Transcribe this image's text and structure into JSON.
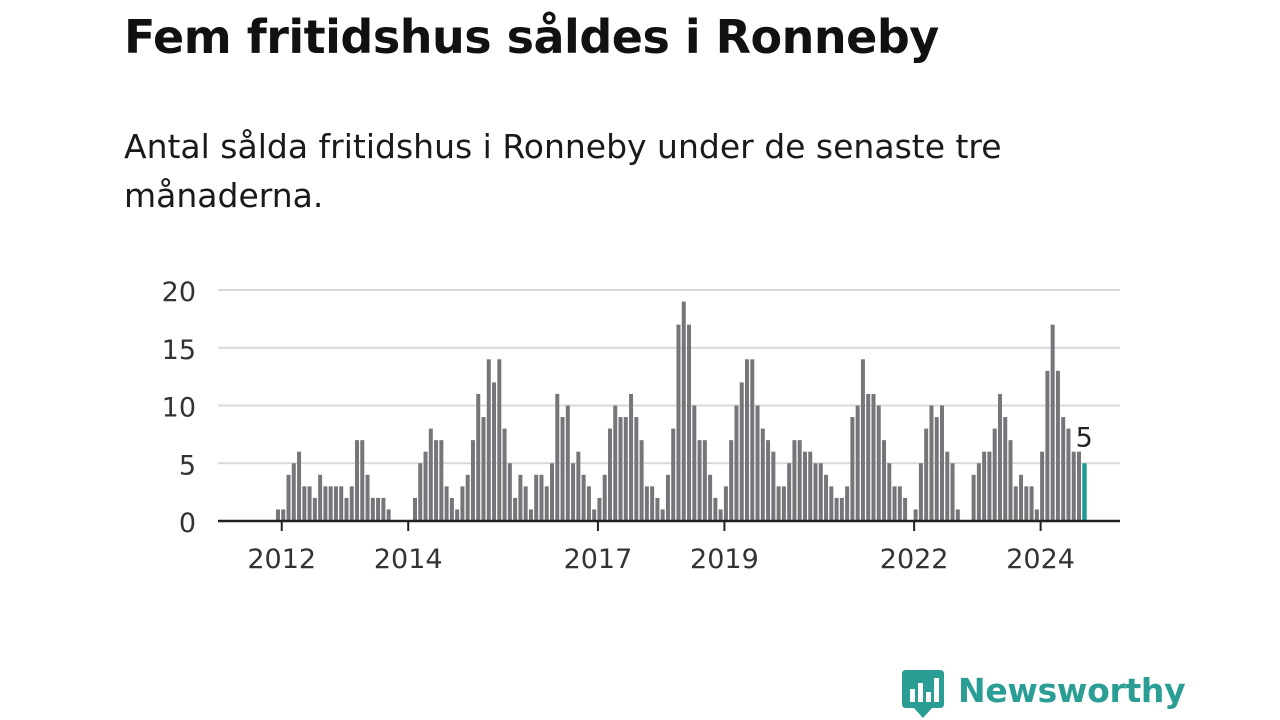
{
  "title": "Fem fritidshus såldes i Ronneby",
  "subtitle": "Antal sålda fritidshus i Ronneby under de senaste tre månaderna.",
  "brand": {
    "name": "Newsworthy",
    "icon": "newsworthy-logo-icon"
  },
  "colors": {
    "bar": "#76757a",
    "highlight": "#1d9a92",
    "grid": "#d9d9d9",
    "axis": "#222222",
    "brand": "#2a9d95"
  },
  "chart_data": {
    "type": "bar",
    "title": "Fem fritidshus såldes i Ronneby",
    "subtitle": "Antal sålda fritidshus i Ronneby under de senaste tre månaderna.",
    "xlabel": "",
    "ylabel": "",
    "ylim": [
      0,
      20
    ],
    "yticks": [
      0,
      5,
      10,
      15,
      20
    ],
    "grid": true,
    "legend": "none",
    "x_start": "2011-01",
    "x_end": "2025-04",
    "x_ticks": [
      {
        "label": "2012",
        "date": "2012-01"
      },
      {
        "label": "2014",
        "date": "2014-01"
      },
      {
        "label": "2017",
        "date": "2017-01"
      },
      {
        "label": "2019",
        "date": "2019-01"
      },
      {
        "label": "2022",
        "date": "2022-01"
      },
      {
        "label": "2024",
        "date": "2024-01"
      }
    ],
    "series": [
      {
        "values": [
          [
            "2011-12",
            1
          ],
          [
            "2012-01",
            1
          ],
          [
            "2012-02",
            4
          ],
          [
            "2012-03",
            5
          ],
          [
            "2012-04",
            6
          ],
          [
            "2012-05",
            3
          ],
          [
            "2012-06",
            3
          ],
          [
            "2012-07",
            2
          ],
          [
            "2012-08",
            4
          ],
          [
            "2012-09",
            3
          ],
          [
            "2012-10",
            3
          ],
          [
            "2012-11",
            3
          ],
          [
            "2012-12",
            3
          ],
          [
            "2013-01",
            2
          ],
          [
            "2013-02",
            3
          ],
          [
            "2013-03",
            7
          ],
          [
            "2013-04",
            7
          ],
          [
            "2013-05",
            4
          ],
          [
            "2013-06",
            2
          ],
          [
            "2013-07",
            2
          ],
          [
            "2013-08",
            2
          ],
          [
            "2013-09",
            1
          ],
          [
            "2014-02",
            2
          ],
          [
            "2014-03",
            5
          ],
          [
            "2014-04",
            6
          ],
          [
            "2014-05",
            8
          ],
          [
            "2014-06",
            7
          ],
          [
            "2014-07",
            7
          ],
          [
            "2014-08",
            3
          ],
          [
            "2014-09",
            2
          ],
          [
            "2014-10",
            1
          ],
          [
            "2014-11",
            3
          ],
          [
            "2014-12",
            4
          ],
          [
            "2015-01",
            7
          ],
          [
            "2015-02",
            11
          ],
          [
            "2015-03",
            9
          ],
          [
            "2015-04",
            14
          ],
          [
            "2015-05",
            12
          ],
          [
            "2015-06",
            14
          ],
          [
            "2015-07",
            8
          ],
          [
            "2015-08",
            5
          ],
          [
            "2015-09",
            2
          ],
          [
            "2015-10",
            4
          ],
          [
            "2015-11",
            3
          ],
          [
            "2015-12",
            1
          ],
          [
            "2016-01",
            4
          ],
          [
            "2016-02",
            4
          ],
          [
            "2016-03",
            3
          ],
          [
            "2016-04",
            5
          ],
          [
            "2016-05",
            11
          ],
          [
            "2016-06",
            9
          ],
          [
            "2016-07",
            10
          ],
          [
            "2016-08",
            5
          ],
          [
            "2016-09",
            6
          ],
          [
            "2016-10",
            4
          ],
          [
            "2016-11",
            3
          ],
          [
            "2016-12",
            1
          ],
          [
            "2017-01",
            2
          ],
          [
            "2017-02",
            4
          ],
          [
            "2017-03",
            8
          ],
          [
            "2017-04",
            10
          ],
          [
            "2017-05",
            9
          ],
          [
            "2017-06",
            9
          ],
          [
            "2017-07",
            11
          ],
          [
            "2017-08",
            9
          ],
          [
            "2017-09",
            7
          ],
          [
            "2017-10",
            3
          ],
          [
            "2017-11",
            3
          ],
          [
            "2017-12",
            2
          ],
          [
            "2018-01",
            1
          ],
          [
            "2018-02",
            4
          ],
          [
            "2018-03",
            8
          ],
          [
            "2018-04",
            17
          ],
          [
            "2018-05",
            19
          ],
          [
            "2018-06",
            17
          ],
          [
            "2018-07",
            10
          ],
          [
            "2018-08",
            7
          ],
          [
            "2018-09",
            7
          ],
          [
            "2018-10",
            4
          ],
          [
            "2018-11",
            2
          ],
          [
            "2018-12",
            1
          ],
          [
            "2019-01",
            3
          ],
          [
            "2019-02",
            7
          ],
          [
            "2019-03",
            10
          ],
          [
            "2019-04",
            12
          ],
          [
            "2019-05",
            14
          ],
          [
            "2019-06",
            14
          ],
          [
            "2019-07",
            10
          ],
          [
            "2019-08",
            8
          ],
          [
            "2019-09",
            7
          ],
          [
            "2019-10",
            6
          ],
          [
            "2019-11",
            3
          ],
          [
            "2019-12",
            3
          ],
          [
            "2020-01",
            5
          ],
          [
            "2020-02",
            7
          ],
          [
            "2020-03",
            7
          ],
          [
            "2020-04",
            6
          ],
          [
            "2020-05",
            6
          ],
          [
            "2020-06",
            5
          ],
          [
            "2020-07",
            5
          ],
          [
            "2020-08",
            4
          ],
          [
            "2020-09",
            3
          ],
          [
            "2020-10",
            2
          ],
          [
            "2020-11",
            2
          ],
          [
            "2020-12",
            3
          ],
          [
            "2021-01",
            9
          ],
          [
            "2021-02",
            10
          ],
          [
            "2021-03",
            14
          ],
          [
            "2021-04",
            11
          ],
          [
            "2021-05",
            11
          ],
          [
            "2021-06",
            10
          ],
          [
            "2021-07",
            7
          ],
          [
            "2021-08",
            5
          ],
          [
            "2021-09",
            3
          ],
          [
            "2021-10",
            3
          ],
          [
            "2021-11",
            2
          ],
          [
            "2022-01",
            1
          ],
          [
            "2022-02",
            5
          ],
          [
            "2022-03",
            8
          ],
          [
            "2022-04",
            10
          ],
          [
            "2022-05",
            9
          ],
          [
            "2022-06",
            10
          ],
          [
            "2022-07",
            6
          ],
          [
            "2022-08",
            5
          ],
          [
            "2022-09",
            1
          ],
          [
            "2022-12",
            4
          ],
          [
            "2023-01",
            5
          ],
          [
            "2023-02",
            6
          ],
          [
            "2023-03",
            6
          ],
          [
            "2023-04",
            8
          ],
          [
            "2023-05",
            11
          ],
          [
            "2023-06",
            9
          ],
          [
            "2023-07",
            7
          ],
          [
            "2023-08",
            3
          ],
          [
            "2023-09",
            4
          ],
          [
            "2023-10",
            3
          ],
          [
            "2023-11",
            3
          ],
          [
            "2023-12",
            1
          ],
          [
            "2024-01",
            6
          ],
          [
            "2024-02",
            13
          ],
          [
            "2024-03",
            17
          ],
          [
            "2024-04",
            13
          ],
          [
            "2024-05",
            9
          ],
          [
            "2024-06",
            8
          ],
          [
            "2024-07",
            6
          ],
          [
            "2024-08",
            6
          ],
          [
            "2024-09",
            5
          ]
        ]
      }
    ],
    "highlight": {
      "date": "2024-09",
      "value": 5,
      "label": "5"
    }
  }
}
